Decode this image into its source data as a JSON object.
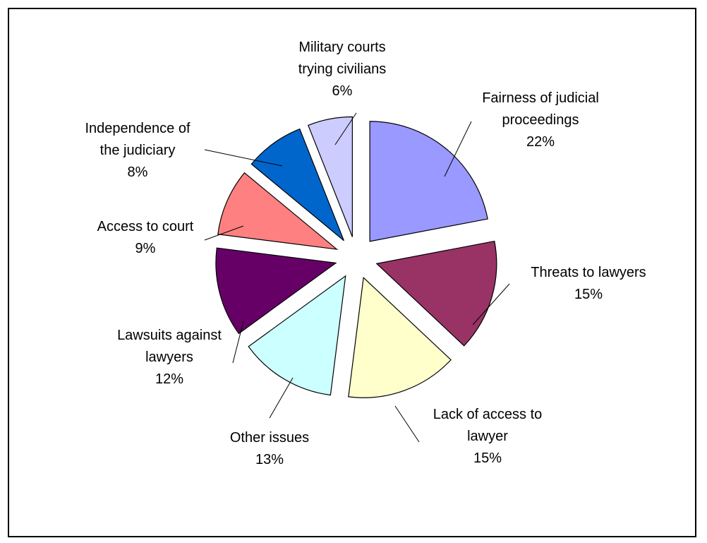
{
  "chart_data": {
    "type": "pie",
    "exploded": true,
    "slices": [
      {
        "label": [
          "Fairness of judicial",
          "proceedings"
        ],
        "pct_text": "22%",
        "value": 22,
        "color": "#9999ff"
      },
      {
        "label": [
          "Threats to lawyers"
        ],
        "pct_text": "15%",
        "value": 15,
        "color": "#993366"
      },
      {
        "label": [
          "Lack of access to",
          "lawyer"
        ],
        "pct_text": "15%",
        "value": 15,
        "color": "#ffffcc"
      },
      {
        "label": [
          "Other issues"
        ],
        "pct_text": "13%",
        "value": 13,
        "color": "#ccffff"
      },
      {
        "label": [
          "Lawsuits against",
          "lawyers"
        ],
        "pct_text": "12%",
        "value": 12,
        "color": "#660066"
      },
      {
        "label": [
          "Access to court"
        ],
        "pct_text": "9%",
        "value": 9,
        "color": "#ff8080"
      },
      {
        "label": [
          "Independence of",
          "the judiciary"
        ],
        "pct_text": "8%",
        "value": 8,
        "color": "#0066cc"
      },
      {
        "label": [
          "Military courts",
          "trying civilians"
        ],
        "pct_text": "6%",
        "value": 6,
        "color": "#ccccff"
      }
    ]
  }
}
